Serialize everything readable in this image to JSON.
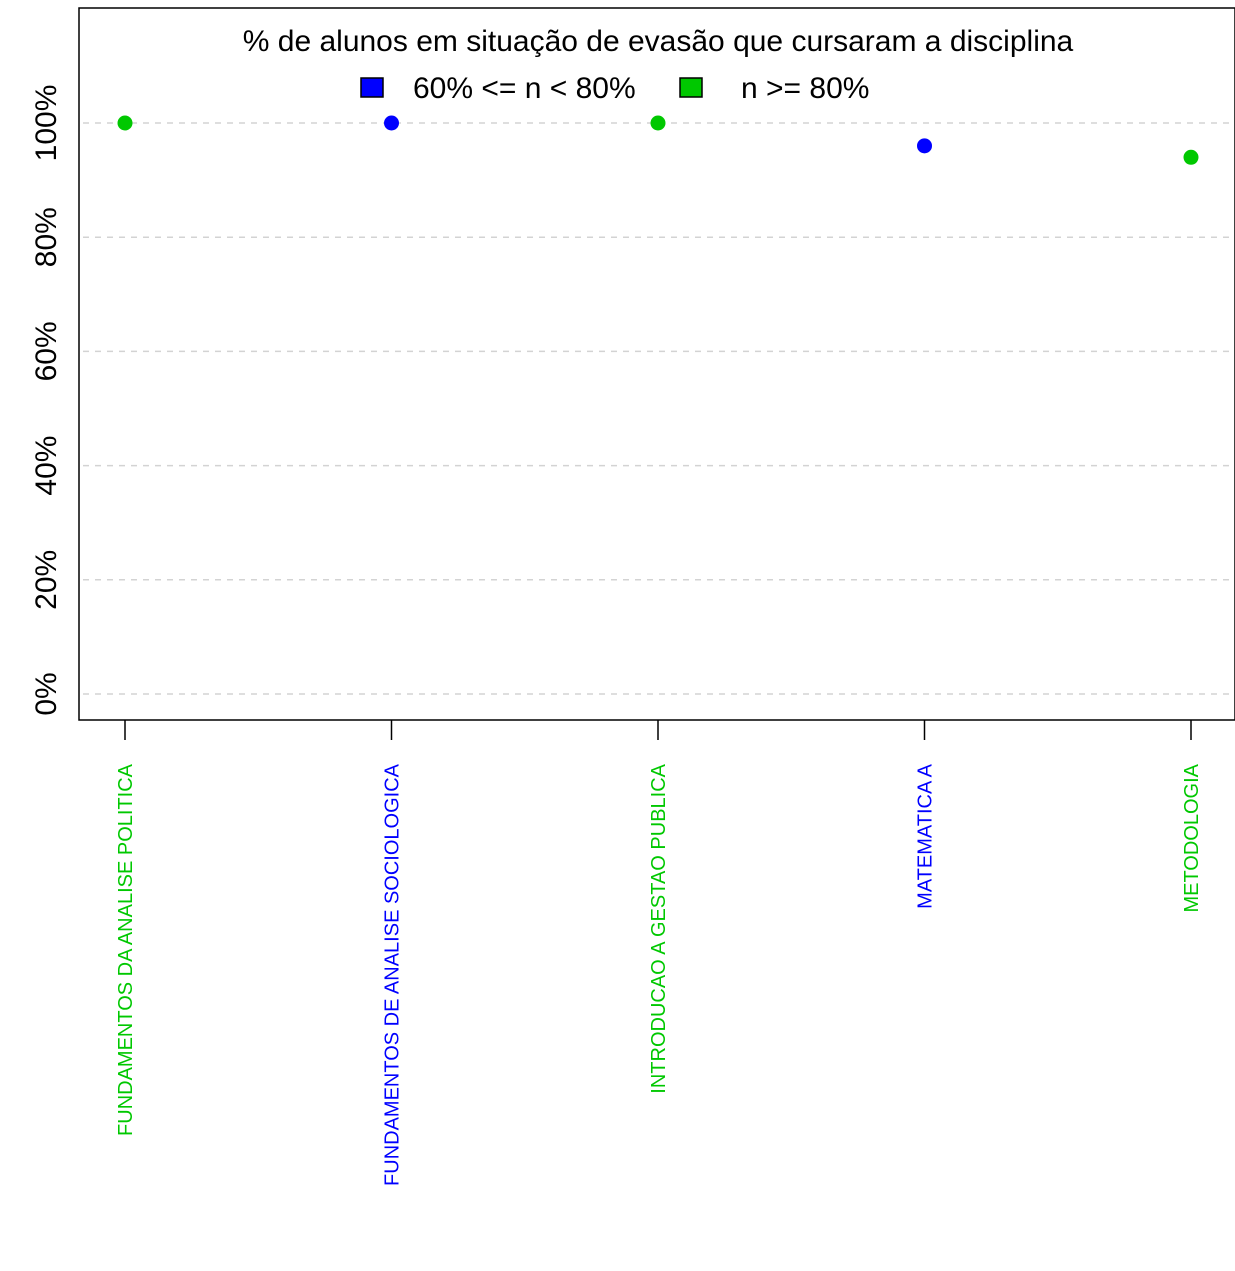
{
  "chart_data": {
    "type": "scatter",
    "title": "% de alunos em situação de evasão que cursaram a disciplina",
    "xlabel": "",
    "ylabel": "",
    "ylim": [
      0,
      100
    ],
    "y_ticks": [
      "0%",
      "20%",
      "40%",
      "60%",
      "80%",
      "100%"
    ],
    "grid": "horizontal dashed",
    "legend": {
      "placement": "top-center",
      "entries": [
        {
          "label": "60% <= n < 80%",
          "color": "#0000ff"
        },
        {
          "label": "n >= 80%",
          "color": "#00c800"
        }
      ]
    },
    "points": [
      {
        "category": "FUNDAMENTOS DA ANALISE POLITICA",
        "value": 100,
        "color": "#00c800"
      },
      {
        "category": "FUNDAMENTOS DE ANALISE SOCIOLOGICA",
        "value": 100,
        "color": "#0000ff"
      },
      {
        "category": "INTRODUCAO A GESTAO PUBLICA",
        "value": 100,
        "color": "#00c800"
      },
      {
        "category": "MATEMATICA A",
        "value": 96,
        "color": "#0000ff"
      },
      {
        "category": "METODOLOGIA",
        "value": 94,
        "color": "#00c800"
      }
    ]
  }
}
